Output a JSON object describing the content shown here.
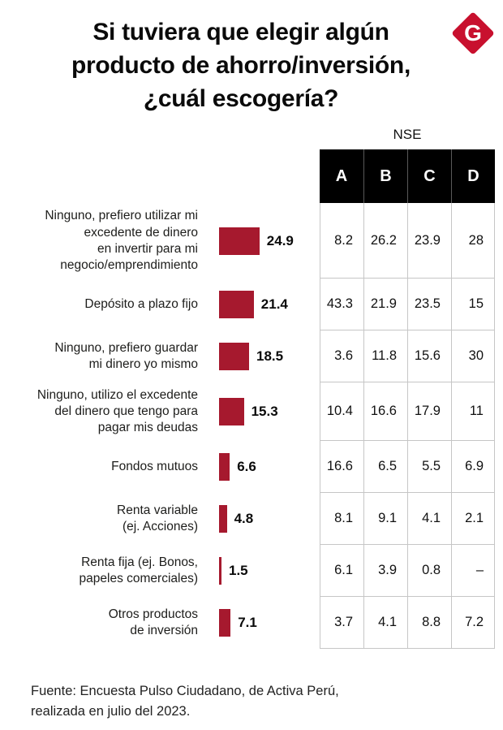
{
  "colors": {
    "bar": "#A6192E",
    "logo": "#C8102E",
    "table_line": "#c6c6c6"
  },
  "header": {
    "title": "Si tuviera que elegir algún\nproducto de ahorro/inversión,\n¿cuál escogería?",
    "logo_letter": "G"
  },
  "chart_data": {
    "type": "bar",
    "orientation": "horizontal",
    "title": "Si tuviera que elegir algún producto de ahorro/inversión, ¿cuál escogería?",
    "categories": [
      [
        "Ninguno, prefiero utilizar mi",
        "excedente de dinero",
        "en invertir para mi",
        "negocio/emprendimiento"
      ],
      [
        "Depósito a plazo fijo"
      ],
      [
        "Ninguno, prefiero guardar",
        "mi dinero yo mismo"
      ],
      [
        "Ninguno, utilizo el excedente",
        "del dinero que tengo para",
        "pagar mis deudas"
      ],
      [
        "Fondos mutuos"
      ],
      [
        "Renta variable",
        "(ej. Acciones)"
      ],
      [
        "Renta fija (ej. Bonos,",
        "papeles comerciales)"
      ],
      [
        "Otros productos",
        "de inversión"
      ]
    ],
    "values": [
      24.9,
      21.4,
      18.5,
      15.3,
      6.6,
      4.8,
      1.5,
      7.1
    ],
    "value_labels": [
      "24.9",
      "21.4",
      "18.5",
      "15.3",
      "6.6",
      "4.8",
      "1.5",
      "7.1"
    ],
    "xlim": [
      0,
      25
    ],
    "grid": false,
    "table": {
      "group_label": "NSE",
      "columns": [
        "A",
        "B",
        "C",
        "D"
      ],
      "rows": [
        [
          "8.2",
          "26.2",
          "23.9",
          "28"
        ],
        [
          "43.3",
          "21.9",
          "23.5",
          "15"
        ],
        [
          "3.6",
          "11.8",
          "15.6",
          "30"
        ],
        [
          "10.4",
          "16.6",
          "17.9",
          "11"
        ],
        [
          "16.6",
          "6.5",
          "5.5",
          "6.9"
        ],
        [
          "8.1",
          "9.1",
          "4.1",
          "2.1"
        ],
        [
          "6.1",
          "3.9",
          "0.8",
          "–"
        ],
        [
          "3.7",
          "4.1",
          "8.8",
          "7.2"
        ]
      ]
    }
  },
  "footer": {
    "text": "Fuente: Encuesta Pulso Ciudadano, de Activa Perú,\nrealizada en julio del 2023."
  }
}
